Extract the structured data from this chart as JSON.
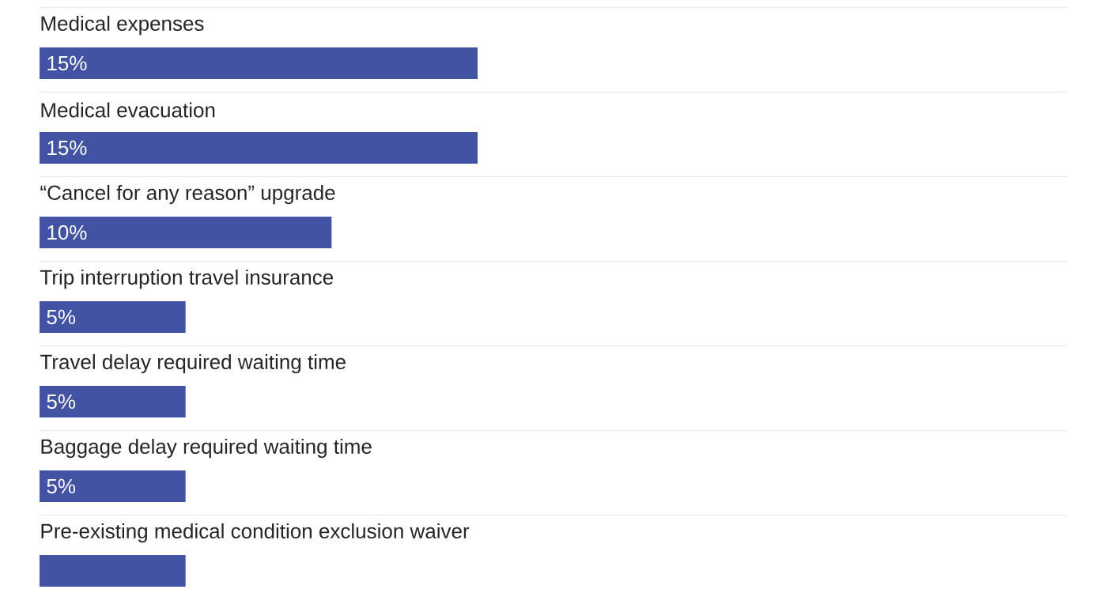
{
  "chart_data": {
    "type": "bar",
    "orientation": "horizontal",
    "categories": [
      "Medical expenses",
      "Medical evacuation",
      "“Cancel for any reason” upgrade",
      "Trip interruption travel insurance",
      "Travel delay required waiting time",
      "Baggage delay required waiting time",
      "Pre-existing medical condition exclusion waiver"
    ],
    "values": [
      15,
      15,
      10,
      5,
      5,
      5,
      5
    ],
    "value_labels": [
      "15%",
      "15%",
      "10%",
      "5%",
      "5%",
      "5%",
      null
    ],
    "color": "#4353a3",
    "grid": "y"
  }
}
